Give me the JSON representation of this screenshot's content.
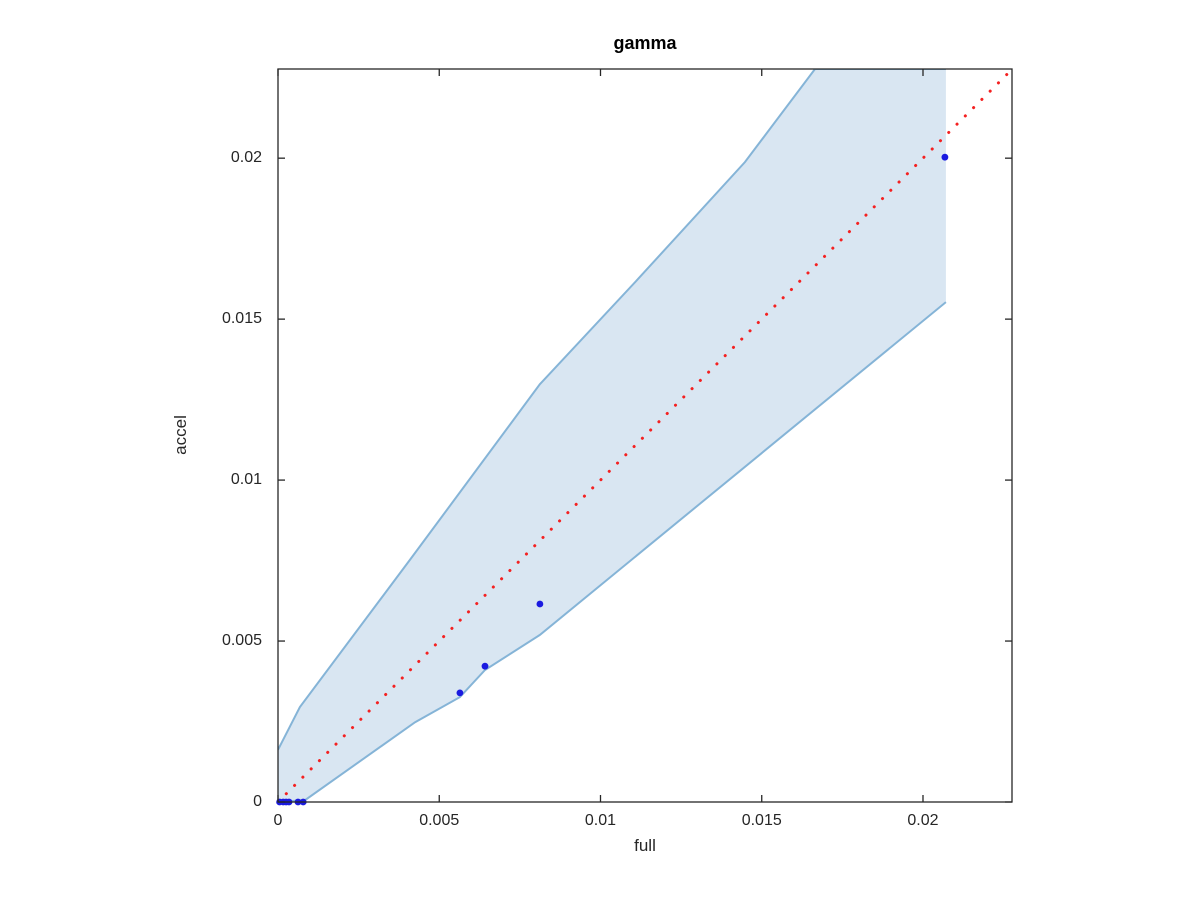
{
  "figure": {
    "title": "gamma",
    "xlabel": "full",
    "ylabel": "accel"
  },
  "chart_data": {
    "type": "scatter",
    "title": "gamma",
    "xlabel": "full",
    "ylabel": "accel",
    "grid": false,
    "legend": null,
    "xlim": [
      0,
      0.02276
    ],
    "ylim": [
      0,
      0.02277
    ],
    "x_ticks": {
      "values": [
        0,
        0.005,
        0.01,
        0.015,
        0.02
      ],
      "labels": [
        "0",
        "0.005",
        "0.01",
        "0.015",
        "0.02"
      ]
    },
    "y_ticks": {
      "values": [
        0,
        0.005,
        0.01,
        0.015,
        0.02
      ],
      "labels": [
        "0",
        "0.005",
        "0.01",
        "0.015",
        "0.02"
      ]
    },
    "axis_color": "#262626",
    "scatter": {
      "name": "data-points",
      "color": "#1a1ae0",
      "marker": "point",
      "points": [
        [
          5e-05,
          0
        ],
        [
          0.00016,
          0
        ],
        [
          0.00025,
          0
        ],
        [
          0.00034,
          0
        ],
        [
          0.00062,
          0
        ],
        [
          0.00078,
          0
        ],
        [
          0.00564,
          0.00339
        ],
        [
          0.00642,
          0.00422
        ],
        [
          0.00812,
          0.00615
        ],
        [
          0.02068,
          0.02003
        ]
      ]
    },
    "identity_line": {
      "name": "y-equals-x-reference",
      "style": "dotted",
      "color": "#f42121",
      "from": [
        0,
        0
      ],
      "to": [
        0.0231,
        0.0231
      ]
    },
    "band": {
      "name": "confidence-band",
      "fill": "#d9e6f2",
      "edge": "#85b4d7",
      "upper": [
        [
          0,
          0.00162
        ],
        [
          0.00068,
          0.00295
        ],
        [
          0.00409,
          0.00752
        ],
        [
          0.00812,
          0.01298
        ],
        [
          0.01113,
          0.01621
        ],
        [
          0.01448,
          0.01988
        ],
        [
          0.01665,
          0.02277
        ],
        [
          0.02071,
          0.02277
        ]
      ],
      "lower": [
        [
          0,
          0
        ],
        [
          0.00084,
          6e-05
        ],
        [
          0.00425,
          0.00248
        ],
        [
          0.00564,
          0.00326
        ],
        [
          0.00642,
          0.0041
        ],
        [
          0.00812,
          0.00519
        ],
        [
          0.02071,
          0.01553
        ]
      ]
    }
  }
}
